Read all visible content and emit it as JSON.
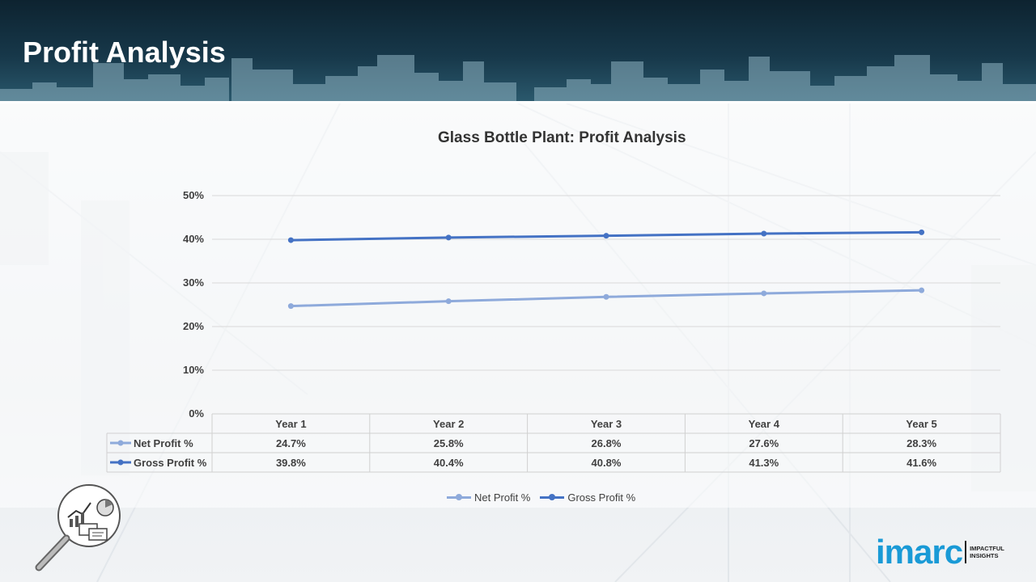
{
  "header": {
    "title": "Profit Analysis"
  },
  "chart_data": {
    "type": "line",
    "title": "Glass Bottle Plant: Profit Analysis",
    "categories": [
      "Year 1",
      "Year 2",
      "Year 3",
      "Year 4",
      "Year 5"
    ],
    "series": [
      {
        "name": "Net Profit %",
        "color": "#8eaadb",
        "values": [
          24.7,
          25.8,
          26.8,
          27.6,
          28.3
        ],
        "labels": [
          "24.7%",
          "25.8%",
          "26.8%",
          "27.6%",
          "28.3%"
        ]
      },
      {
        "name": "Gross Profit %",
        "color": "#4472c4",
        "values": [
          39.8,
          40.4,
          40.8,
          41.3,
          41.6
        ],
        "labels": [
          "39.8%",
          "40.4%",
          "40.8%",
          "41.3%",
          "41.6%"
        ]
      }
    ],
    "yticks": [
      "0%",
      "10%",
      "20%",
      "30%",
      "40%",
      "50%"
    ],
    "ylim": [
      0,
      50
    ],
    "grid": true,
    "legend": "bottom",
    "data_table": true
  },
  "logo": {
    "text": "imarc",
    "tagline_1": "IMPACTFUL",
    "tagline_2": "INSIGHTS"
  }
}
